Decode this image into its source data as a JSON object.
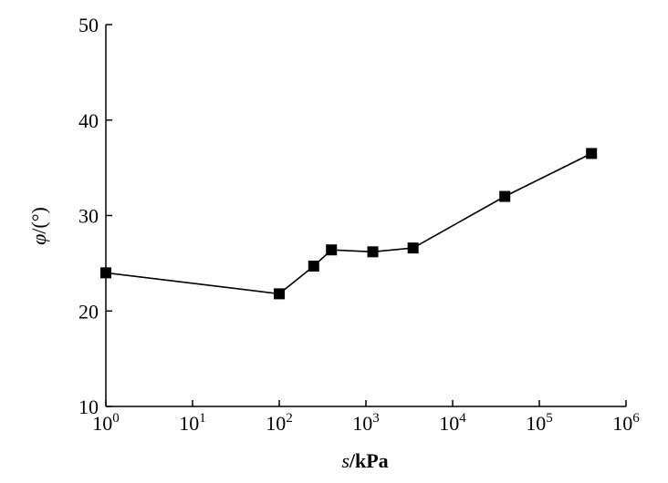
{
  "chart_data": {
    "type": "line",
    "x_scale": "log",
    "xlabel": {
      "var": "s",
      "unit": "/kPa"
    },
    "ylabel": {
      "var": "φ",
      "unit": "/(°)"
    },
    "xlim": [
      1,
      1000000
    ],
    "ylim": [
      10,
      50
    ],
    "x_ticks": [
      {
        "base": "10",
        "exp": "0",
        "value": 1
      },
      {
        "base": "10",
        "exp": "1",
        "value": 10
      },
      {
        "base": "10",
        "exp": "2",
        "value": 100
      },
      {
        "base": "10",
        "exp": "3",
        "value": 1000
      },
      {
        "base": "10",
        "exp": "4",
        "value": 10000
      },
      {
        "base": "10",
        "exp": "5",
        "value": 100000
      },
      {
        "base": "10",
        "exp": "6",
        "value": 1000000
      }
    ],
    "y_ticks": [
      "10",
      "20",
      "30",
      "40",
      "50"
    ],
    "grid": false,
    "series": [
      {
        "marker": "square",
        "color": "#000000",
        "points": [
          {
            "x": 1,
            "y": 24.0
          },
          {
            "x": 100,
            "y": 21.8
          },
          {
            "x": 250,
            "y": 24.7
          },
          {
            "x": 400,
            "y": 26.4
          },
          {
            "x": 1200,
            "y": 26.2
          },
          {
            "x": 3500,
            "y": 26.6
          },
          {
            "x": 40000,
            "y": 32.0
          },
          {
            "x": 400000,
            "y": 36.5
          }
        ]
      }
    ]
  }
}
